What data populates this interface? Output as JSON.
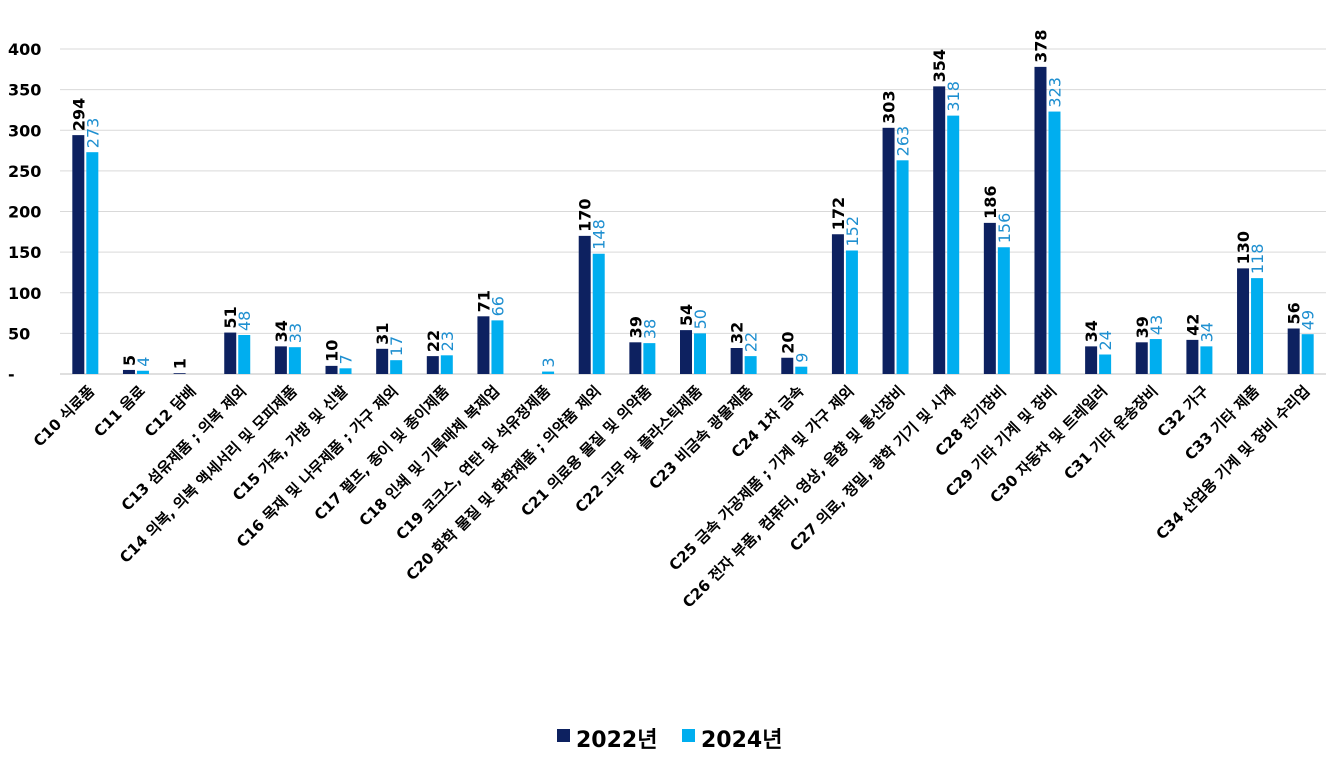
{
  "chart_data": {
    "type": "bar",
    "title": "",
    "xlabel": "",
    "ylabel": "",
    "ylim": [
      0,
      400
    ],
    "yticks": [
      0,
      50,
      100,
      150,
      200,
      250,
      300,
      350,
      400
    ],
    "ytick_labels": [
      "-",
      "50",
      "100",
      "150",
      "200",
      "250",
      "300",
      "350",
      "400"
    ],
    "grid": true,
    "legend_position": "bottom-center",
    "categories": [
      "C10 식료품",
      "C11 음료",
      "C12 담배",
      "C13 섬유제품 ; 의복 제외",
      "C14 의복, 의복 액세서리 및 모피제품",
      "C15 가죽, 가방 및 신발",
      "C16 목재 및 나무제품 ; 가구 제외",
      "C17 펄프, 종이 및 종이제품",
      "C18 인쇄 및 기록매체 복제업",
      "C19 코크스, 연탄 및 석유정제품",
      "C20 화학 물질 및 화학제품 ; 의약품 제외",
      "C21 의료용 물질 및 의약품",
      "C22 고무 및 플라스틱제품",
      "C23 비금속 광물제품",
      "C24 1차 금속",
      "C25 금속 가공제품 ; 기계 및 가구 제외",
      "C26 전자 부품, 컴퓨터, 영상, 음향 및 통신장비",
      "C27 의료, 정밀, 광학 기기 및 시계",
      "C28 전기장비",
      "C29 기타 기계 및 장비",
      "C30 자동차 및 트레일러",
      "C31 기타 운송장비",
      "C32 가구",
      "C33 기타 제품",
      "C34 산업용 기계 및 장비 수리업"
    ],
    "series": [
      {
        "name": "2022년",
        "color": "#0d2160",
        "label_color": "#000000",
        "values": [
          294,
          5,
          1,
          51,
          34,
          10,
          31,
          22,
          71,
          null,
          170,
          39,
          54,
          32,
          20,
          172,
          303,
          354,
          186,
          378,
          34,
          39,
          42,
          130,
          56
        ]
      },
      {
        "name": "2024년",
        "color": "#00aeef",
        "label_color": "#1e8fd0",
        "values": [
          273,
          4,
          null,
          48,
          33,
          7,
          17,
          23,
          66,
          3,
          148,
          38,
          50,
          22,
          9,
          152,
          263,
          318,
          156,
          323,
          24,
          43,
          34,
          118,
          49
        ]
      }
    ]
  }
}
